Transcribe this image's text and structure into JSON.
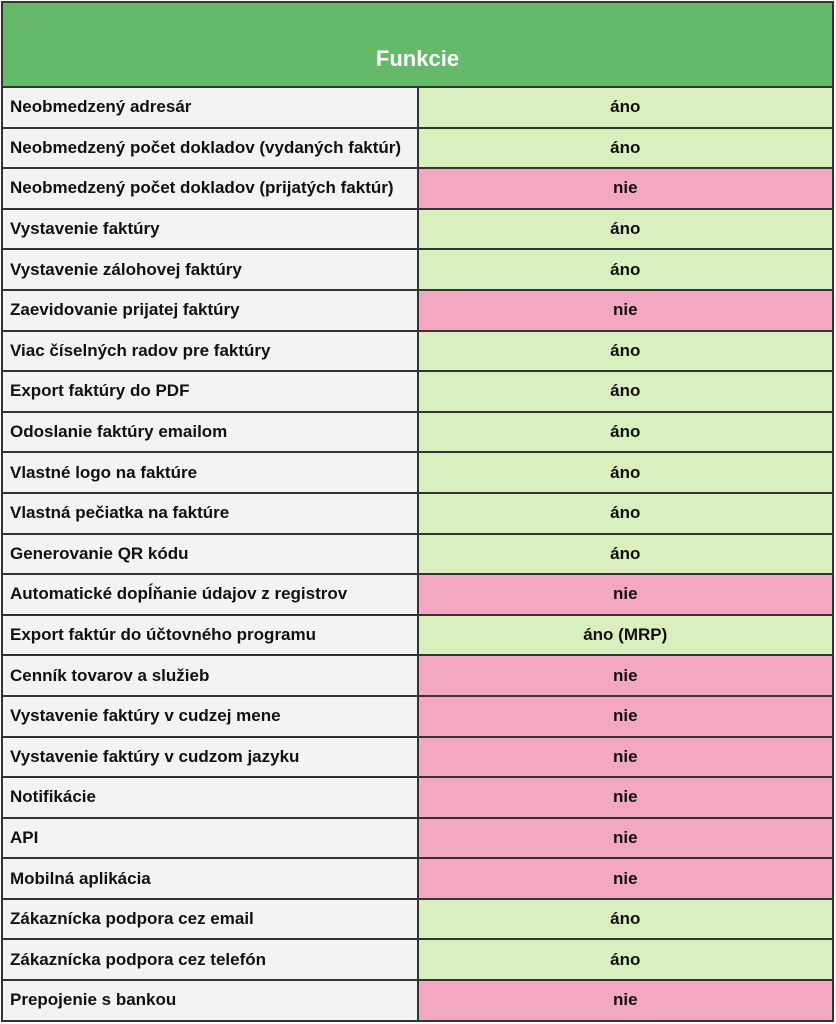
{
  "header": {
    "title": "Funkcie"
  },
  "colors": {
    "header": "#66b96a",
    "yes": "#d9efbe",
    "no": "#f4a7c1",
    "feature_bg": "#f3f3f3"
  },
  "rows": [
    {
      "feature": "Neobmedzený adresár",
      "value": "áno",
      "status": "yes"
    },
    {
      "feature": "Neobmedzený počet dokladov (vydaných faktúr)",
      "value": "áno",
      "status": "yes"
    },
    {
      "feature": "Neobmedzený počet dokladov (prijatých faktúr)",
      "value": "nie",
      "status": "no"
    },
    {
      "feature": "Vystavenie faktúry",
      "value": "áno",
      "status": "yes"
    },
    {
      "feature": "Vystavenie zálohovej faktúry",
      "value": "áno",
      "status": "yes"
    },
    {
      "feature": "Zaevidovanie prijatej faktúry",
      "value": "nie",
      "status": "no"
    },
    {
      "feature": "Viac číselných radov pre faktúry",
      "value": "áno",
      "status": "yes"
    },
    {
      "feature": "Export faktúry do PDF",
      "value": "áno",
      "status": "yes"
    },
    {
      "feature": "Odoslanie faktúry emailom",
      "value": "áno",
      "status": "yes"
    },
    {
      "feature": "Vlastné logo na faktúre",
      "value": "áno",
      "status": "yes"
    },
    {
      "feature": "Vlastná pečiatka na faktúre",
      "value": "áno",
      "status": "yes"
    },
    {
      "feature": "Generovanie QR kódu",
      "value": "áno",
      "status": "yes"
    },
    {
      "feature": "Automatické dopĺňanie údajov z registrov",
      "value": "nie",
      "status": "no"
    },
    {
      "feature": "Export faktúr do účtovného programu",
      "value": "áno (MRP)",
      "status": "yes"
    },
    {
      "feature": "Cenník tovarov a služieb",
      "value": "nie",
      "status": "no"
    },
    {
      "feature": "Vystavenie faktúry v cudzej mene",
      "value": "nie",
      "status": "no"
    },
    {
      "feature": "Vystavenie faktúry v cudzom jazyku",
      "value": "nie",
      "status": "no"
    },
    {
      "feature": "Notifikácie",
      "value": "nie",
      "status": "no"
    },
    {
      "feature": "API",
      "value": "nie",
      "status": "no"
    },
    {
      "feature": "Mobilná aplikácia",
      "value": "nie",
      "status": "no"
    },
    {
      "feature": "Zákaznícka podpora cez email",
      "value": "áno",
      "status": "yes"
    },
    {
      "feature": "Zákaznícka podpora cez telefón",
      "value": "áno",
      "status": "yes"
    },
    {
      "feature": "Prepojenie s bankou",
      "value": "nie",
      "status": "no"
    }
  ]
}
